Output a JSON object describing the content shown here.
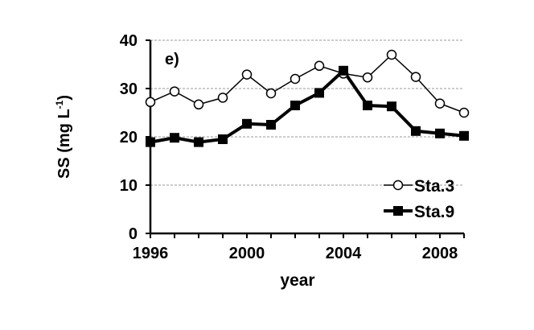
{
  "chart_data": {
    "type": "line",
    "panel_label": "e)",
    "xlabel": "year",
    "ylabel": "SS (mg L",
    "ylabel_sup": "-1",
    "ylabel_end": ")",
    "xlim": [
      1996,
      2009
    ],
    "ylim": [
      0,
      40
    ],
    "xticks": [
      1996,
      2000,
      2004,
      2008
    ],
    "yticks": [
      0,
      10,
      20,
      30,
      40
    ],
    "grid": "horizontal dashed",
    "legend": "bottom-right",
    "x": [
      1996,
      1997,
      1998,
      1999,
      2000,
      2001,
      2002,
      2003,
      2004,
      2005,
      2006,
      2007,
      2008,
      2009
    ],
    "series": [
      {
        "name": "Sta.3",
        "marker": "open-circle",
        "values": [
          27.2,
          29.4,
          26.7,
          28.1,
          32.9,
          29.0,
          32.0,
          34.7,
          33.1,
          32.3,
          37.0,
          32.4,
          26.9,
          25.0
        ]
      },
      {
        "name": "Sta.9",
        "marker": "filled-square",
        "values": [
          18.9,
          19.8,
          18.9,
          19.5,
          22.7,
          22.5,
          26.5,
          29.1,
          33.7,
          26.5,
          26.3,
          21.2,
          20.7,
          20.2
        ]
      }
    ]
  }
}
